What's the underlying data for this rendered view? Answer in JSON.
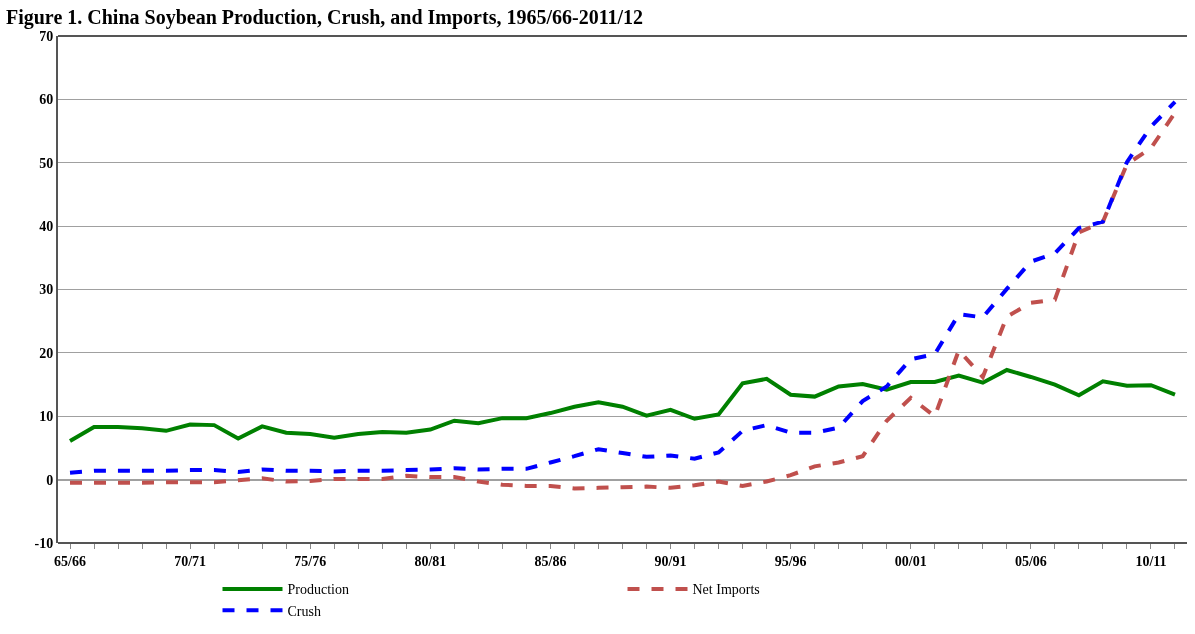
{
  "chart_data": {
    "type": "line",
    "title": "Figure 1. China Soybean Production, Crush, and Imports, 1965/66-2011/12",
    "categories": [
      "65/66",
      null,
      null,
      null,
      null,
      "70/71",
      null,
      null,
      null,
      null,
      "75/76",
      null,
      null,
      null,
      null,
      "80/81",
      null,
      null,
      null,
      null,
      "85/86",
      null,
      null,
      null,
      null,
      "90/91",
      null,
      null,
      null,
      null,
      "95/96",
      null,
      null,
      null,
      null,
      "00/01",
      null,
      null,
      null,
      null,
      "05/06",
      null,
      null,
      null,
      null,
      "10/11",
      null
    ],
    "series": [
      {
        "name": "Production",
        "color": "#008000",
        "line_style": "solid",
        "values": [
          6.1,
          8.3,
          8.3,
          8.1,
          7.7,
          8.7,
          8.6,
          6.5,
          8.4,
          7.4,
          7.2,
          6.6,
          7.2,
          7.5,
          7.4,
          7.9,
          9.3,
          8.9,
          9.7,
          9.7,
          10.5,
          11.5,
          12.2,
          11.5,
          10.1,
          11.0,
          9.6,
          10.3,
          15.2,
          15.9,
          13.4,
          13.1,
          14.7,
          15.1,
          14.2,
          15.4,
          15.4,
          16.4,
          15.3,
          17.3,
          16.2,
          15.0,
          13.3,
          15.5,
          14.8,
          14.9,
          13.4
        ]
      },
      {
        "name": "Net Imports",
        "color": "#c0504d",
        "line_style": "dashed",
        "values": [
          -0.5,
          -0.5,
          -0.5,
          -0.5,
          -0.4,
          -0.4,
          -0.4,
          -0.1,
          0.2,
          -0.3,
          -0.2,
          0.1,
          0.1,
          0.1,
          0.6,
          0.4,
          0.4,
          -0.3,
          -0.8,
          -1.0,
          -1.0,
          -1.4,
          -1.3,
          -1.2,
          -1.1,
          -1.3,
          -0.9,
          -0.3,
          -1.0,
          -0.3,
          0.7,
          2.1,
          2.7,
          3.7,
          9.3,
          12.9,
          10.0,
          20.4,
          16.2,
          25.7,
          27.9,
          28.4,
          39.0,
          40.7,
          49.8,
          52.3,
          57.9
        ]
      },
      {
        "name": "Crush",
        "color": "#0000ff",
        "line_style": "dashed",
        "values": [
          1.1,
          1.4,
          1.4,
          1.4,
          1.4,
          1.5,
          1.5,
          1.2,
          1.6,
          1.4,
          1.4,
          1.3,
          1.4,
          1.4,
          1.5,
          1.6,
          1.8,
          1.6,
          1.7,
          1.7,
          2.7,
          3.7,
          4.8,
          4.2,
          3.6,
          3.8,
          3.3,
          4.3,
          7.7,
          8.6,
          7.4,
          7.4,
          8.2,
          12.4,
          14.7,
          19.0,
          19.8,
          26.1,
          25.6,
          30.1,
          34.4,
          35.7,
          39.7,
          40.7,
          50.1,
          55.7,
          59.6
        ]
      }
    ],
    "ylim": [
      -10,
      70
    ],
    "yticks": [
      -10,
      0,
      10,
      20,
      30,
      40,
      50,
      60,
      70
    ],
    "grid": "y",
    "legend": "bottom",
    "marker": "none"
  }
}
